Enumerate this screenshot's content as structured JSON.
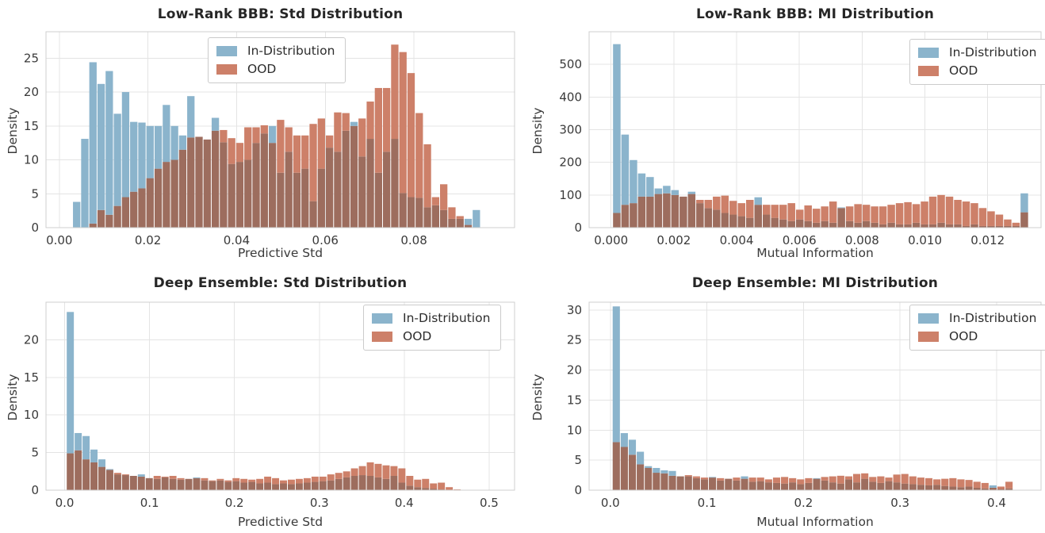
{
  "legend": {
    "in_distribution": "In-Distribution",
    "ood": "OOD"
  },
  "colors": {
    "in_dist": "#8bb4cc",
    "ood": "#cd8069",
    "overlap": "#9d6d5e",
    "grid": "#e4e4e4",
    "spine": "#cfcfcf",
    "tick_text": "#3a3a3a",
    "title_text": "#262626"
  },
  "chart_data": [
    {
      "type": "bar",
      "subtype": "overlaid-histogram",
      "title": "Low-Rank BBB: Std Distribution",
      "xlabel": "Predictive Std",
      "ylabel": "Density",
      "legend_position": "top-center",
      "grid": true,
      "xlim": [
        -0.003,
        0.1027
      ],
      "ylim": [
        0,
        28.9
      ],
      "yticks": [
        0,
        5,
        10,
        15,
        20,
        25
      ],
      "xticks": [
        0.0,
        0.02,
        0.04,
        0.06,
        0.08
      ],
      "xtick_labels": [
        "0.00",
        "0.02",
        "0.04",
        "0.06",
        "0.08"
      ],
      "bin_start": 0.003,
      "bin_width": 0.00184,
      "series": [
        {
          "name": "In-Distribution",
          "values": [
            3.8,
            13.1,
            24.4,
            21.2,
            23.1,
            16.8,
            20.0,
            15.6,
            15.5,
            15.0,
            15.0,
            18.1,
            15.0,
            13.6,
            19.4,
            13.4,
            13.0,
            16.2,
            12.6,
            9.4,
            9.7,
            10.0,
            12.5,
            13.9,
            15.0,
            8.1,
            11.2,
            8.1,
            8.7,
            3.9,
            8.7,
            11.8,
            11.2,
            14.3,
            15.6,
            10.5,
            13.1,
            8.1,
            11.2,
            13.1,
            5.1,
            4.5,
            4.4,
            3.0,
            3.3,
            2.6,
            1.3,
            1.3,
            1.3,
            2.6
          ]
        },
        {
          "name": "OOD",
          "values": [
            0,
            0,
            0.6,
            2.6,
            1.9,
            3.2,
            4.5,
            5.3,
            5.8,
            7.3,
            8.7,
            9.7,
            10.0,
            11.5,
            13.3,
            13.4,
            13.0,
            14.3,
            14.4,
            13.2,
            12.5,
            14.8,
            14.8,
            15.1,
            12.5,
            15.9,
            14.8,
            13.6,
            13.6,
            15.3,
            16.1,
            13.6,
            17.0,
            16.9,
            15.0,
            16.1,
            18.6,
            20.6,
            20.6,
            27.0,
            25.9,
            22.8,
            16.9,
            12.3,
            4.5,
            6.4,
            3.0,
            1.7,
            0.4,
            0
          ]
        }
      ]
    },
    {
      "type": "bar",
      "subtype": "overlaid-histogram",
      "title": "Low-Rank BBB: MI Distribution",
      "xlabel": "Mutual Information",
      "ylabel": "Density",
      "legend_position": "top-right",
      "grid": true,
      "xlim": [
        -0.0007,
        0.0137
      ],
      "ylim": [
        0,
        600
      ],
      "yticks": [
        0,
        100,
        200,
        300,
        400,
        500
      ],
      "xticks": [
        0.0,
        0.002,
        0.004,
        0.006,
        0.008,
        0.01,
        0.012
      ],
      "xtick_labels": [
        "0.000",
        "0.002",
        "0.004",
        "0.006",
        "0.008",
        "0.010",
        "0.012"
      ],
      "bin_start": 5e-05,
      "bin_width": 0.000265,
      "series": [
        {
          "name": "In-Distribution",
          "values": [
            562,
            285,
            207,
            166,
            155,
            120,
            128,
            115,
            95,
            110,
            75,
            60,
            55,
            45,
            40,
            35,
            30,
            93,
            40,
            30,
            25,
            20,
            25,
            20,
            15,
            20,
            15,
            62,
            20,
            15,
            20,
            15,
            10,
            15,
            10,
            10,
            15,
            10,
            10,
            15,
            10,
            10,
            5,
            10,
            5,
            5,
            5,
            5,
            5,
            105
          ]
        },
        {
          "name": "OOD",
          "values": [
            45,
            70,
            75,
            95,
            95,
            103,
            105,
            100,
            95,
            103,
            85,
            85,
            95,
            98,
            82,
            75,
            85,
            70,
            70,
            70,
            70,
            75,
            55,
            68,
            58,
            65,
            80,
            60,
            65,
            72,
            70,
            65,
            65,
            70,
            75,
            78,
            72,
            80,
            95,
            100,
            95,
            85,
            80,
            75,
            60,
            50,
            40,
            25,
            15,
            47
          ]
        }
      ]
    },
    {
      "type": "bar",
      "subtype": "overlaid-histogram",
      "title": "Deep Ensemble: Std Distribution",
      "xlabel": "Predictive Std",
      "ylabel": "Density",
      "legend_position": "top-right",
      "grid": true,
      "xlim": [
        -0.022,
        0.53
      ],
      "ylim": [
        0,
        25
      ],
      "yticks": [
        0,
        5,
        10,
        15,
        20
      ],
      "xticks": [
        0.0,
        0.1,
        0.2,
        0.3,
        0.4,
        0.5
      ],
      "xtick_labels": [
        "0.0",
        "0.1",
        "0.2",
        "0.3",
        "0.4",
        "0.5"
      ],
      "bin_start": 0.002,
      "bin_width": 0.0093,
      "series": [
        {
          "name": "In-Distribution",
          "values": [
            23.7,
            7.6,
            7.2,
            5.4,
            4.1,
            2.8,
            2.1,
            2.0,
            1.9,
            2.1,
            1.6,
            1.5,
            1.7,
            1.5,
            1.4,
            1.5,
            1.7,
            1.3,
            1.2,
            1.3,
            1.1,
            1.2,
            1.0,
            1.1,
            0.9,
            1.0,
            0.8,
            0.9,
            0.8,
            0.9,
            1.0,
            1.1,
            1.2,
            1.3,
            1.5,
            1.7,
            1.9,
            2.0,
            1.9,
            1.7,
            1.5,
            1.9,
            1.0,
            0.6,
            0.4,
            0.3,
            0.2,
            0.1,
            0,
            0
          ]
        },
        {
          "name": "OOD",
          "values": [
            4.9,
            5.3,
            4.1,
            3.7,
            3.1,
            2.7,
            2.3,
            2.1,
            1.9,
            1.8,
            1.6,
            1.9,
            1.8,
            1.9,
            1.6,
            1.5,
            1.6,
            1.6,
            1.3,
            1.5,
            1.3,
            1.6,
            1.5,
            1.4,
            1.5,
            1.8,
            1.6,
            1.3,
            1.4,
            1.5,
            1.6,
            1.8,
            1.8,
            2.1,
            2.3,
            2.5,
            2.9,
            3.2,
            3.7,
            3.5,
            3.3,
            3.2,
            2.9,
            1.9,
            1.4,
            1.5,
            0.9,
            1.0,
            0.4,
            0.1
          ]
        }
      ]
    },
    {
      "type": "bar",
      "subtype": "overlaid-histogram",
      "title": "Deep Ensemble: MI Distribution",
      "xlabel": "Mutual Information",
      "ylabel": "Density",
      "legend_position": "top-right",
      "grid": true,
      "xlim": [
        -0.022,
        0.446
      ],
      "ylim": [
        0,
        31.3
      ],
      "yticks": [
        0,
        5,
        10,
        15,
        20,
        25,
        30
      ],
      "xticks": [
        0.0,
        0.1,
        0.2,
        0.3,
        0.4
      ],
      "xtick_labels": [
        "0.0",
        "0.1",
        "0.2",
        "0.3",
        "0.4"
      ],
      "bin_start": 0.002,
      "bin_width": 0.0083,
      "series": [
        {
          "name": "In-Distribution",
          "values": [
            30.6,
            9.5,
            8.4,
            6.4,
            4.0,
            3.7,
            3.3,
            3.2,
            2.3,
            2.3,
            2.0,
            1.8,
            2.2,
            1.6,
            1.9,
            1.6,
            2.3,
            1.4,
            1.5,
            1.3,
            1.2,
            1.1,
            1.3,
            1.0,
            1.2,
            2.0,
            1.6,
            1.3,
            1.1,
            1.8,
            1.3,
            1.9,
            1.4,
            1.2,
            1.5,
            1.3,
            1.1,
            1.0,
            0.9,
            0.8,
            0.9,
            0.7,
            0.6,
            0.5,
            0.6,
            0.4,
            0.3,
            0.8,
            0.2,
            0.3
          ]
        },
        {
          "name": "OOD",
          "values": [
            8.0,
            7.2,
            5.9,
            4.3,
            3.7,
            2.9,
            2.8,
            2.4,
            2.3,
            2.5,
            2.3,
            2.1,
            2.1,
            2.0,
            1.9,
            2.1,
            1.9,
            2.1,
            2.1,
            1.8,
            2.1,
            2.2,
            2.0,
            1.8,
            2.0,
            1.9,
            2.2,
            2.3,
            2.4,
            2.3,
            2.7,
            2.8,
            2.2,
            2.3,
            2.1,
            2.6,
            2.7,
            2.3,
            2.1,
            2.0,
            1.8,
            1.9,
            2.0,
            1.8,
            1.7,
            1.4,
            1.2,
            0.4,
            0.6,
            1.4
          ]
        }
      ]
    }
  ]
}
